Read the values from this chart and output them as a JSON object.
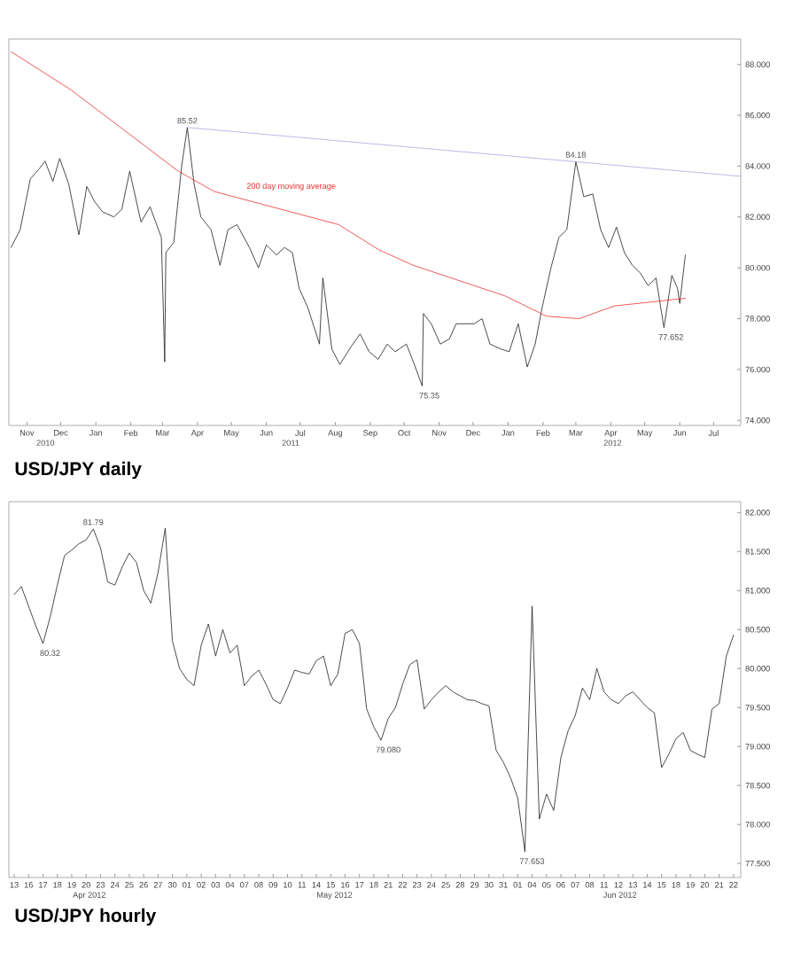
{
  "chart_data": [
    {
      "type": "line",
      "title": "USD/JPY daily",
      "xlim": [
        "2010-10-30",
        "2012-08-08"
      ],
      "xticks": [
        {
          "value": "2010-11-15",
          "label": "Nov"
        },
        {
          "value": "2010-12-15",
          "label": "Dec"
        },
        {
          "value": "2011-01-15",
          "label": "Jan"
        },
        {
          "value": "2011-02-15",
          "label": "Feb"
        },
        {
          "value": "2011-03-15",
          "label": "Mar"
        },
        {
          "value": "2011-04-15",
          "label": "Apr"
        },
        {
          "value": "2011-05-15",
          "label": "May"
        },
        {
          "value": "2011-06-15",
          "label": "Jun"
        },
        {
          "value": "2011-07-15",
          "label": "Jul"
        },
        {
          "value": "2011-08-15",
          "label": "Aug"
        },
        {
          "value": "2011-09-15",
          "label": "Sep"
        },
        {
          "value": "2011-10-15",
          "label": "Oct"
        },
        {
          "value": "2011-11-15",
          "label": "Nov"
        },
        {
          "value": "2011-12-15",
          "label": "Dec"
        },
        {
          "value": "2012-01-15",
          "label": "Jan"
        },
        {
          "value": "2012-02-15",
          "label": "Feb"
        },
        {
          "value": "2012-03-15",
          "label": "Mar"
        },
        {
          "value": "2012-04-15",
          "label": "Apr"
        },
        {
          "value": "2012-05-15",
          "label": "May"
        },
        {
          "value": "2012-06-15",
          "label": "Jun"
        },
        {
          "value": "2012-07-15",
          "label": "Jul"
        }
      ],
      "ylim": [
        73.8,
        89.0
      ],
      "yticks": [
        {
          "value": 74,
          "label": "74.000"
        },
        {
          "value": 76,
          "label": "76.000"
        },
        {
          "value": 78,
          "label": "78.000"
        },
        {
          "value": 80,
          "label": "80.000"
        },
        {
          "value": 82,
          "label": "82.000"
        },
        {
          "value": 84,
          "label": "84.000"
        },
        {
          "value": 86,
          "label": "86.000"
        },
        {
          "value": 88,
          "label": "88.000"
        }
      ],
      "series": [
        {
          "color": "#1e1e1e",
          "x": [
            "2010-11-01",
            "2010-11-09",
            "2010-11-18",
            "2010-11-26",
            "2010-12-01",
            "2010-12-08",
            "2010-12-14",
            "2010-12-22",
            "2010-12-31",
            "2011-01-07",
            "2011-01-14",
            "2011-01-21",
            "2011-01-31",
            "2011-02-07",
            "2011-02-14",
            "2011-02-24",
            "2011-03-04",
            "2011-03-14",
            "2011-03-17",
            "2011-03-18",
            "2011-03-25",
            "2011-04-01",
            "2011-04-06",
            "2011-04-12",
            "2011-04-18",
            "2011-04-27",
            "2011-05-05",
            "2011-05-12",
            "2011-05-20",
            "2011-05-31",
            "2011-06-08",
            "2011-06-15",
            "2011-06-24",
            "2011-07-01",
            "2011-07-08",
            "2011-07-14",
            "2011-07-22",
            "2011-08-01",
            "2011-08-04",
            "2011-08-12",
            "2011-08-19",
            "2011-08-29",
            "2011-09-06",
            "2011-09-14",
            "2011-09-22",
            "2011-09-30",
            "2011-10-07",
            "2011-10-17",
            "2011-10-24",
            "2011-10-31",
            "2011-11-01",
            "2011-11-08",
            "2011-11-16",
            "2011-11-24",
            "2011-11-30",
            "2011-12-08",
            "2011-12-16",
            "2011-12-23",
            "2011-12-30",
            "2012-01-09",
            "2012-01-16",
            "2012-01-24",
            "2012-02-01",
            "2012-02-08",
            "2012-02-14",
            "2012-02-22",
            "2012-02-29",
            "2012-03-07",
            "2012-03-15",
            "2012-03-22",
            "2012-03-30",
            "2012-04-06",
            "2012-04-13",
            "2012-04-20",
            "2012-04-27",
            "2012-05-04",
            "2012-05-11",
            "2012-05-18",
            "2012-05-25",
            "2012-06-01",
            "2012-06-04",
            "2012-06-08",
            "2012-06-13",
            "2012-06-15",
            "2012-06-20"
          ],
          "values": [
            80.8,
            81.5,
            83.5,
            83.9,
            84.2,
            83.4,
            84.3,
            83.3,
            81.3,
            83.2,
            82.6,
            82.2,
            82.0,
            82.3,
            83.8,
            81.8,
            82.4,
            81.2,
            76.3,
            80.6,
            81.0,
            84.0,
            85.52,
            83.3,
            82.0,
            81.5,
            80.1,
            81.5,
            81.7,
            80.8,
            80.0,
            80.9,
            80.5,
            80.8,
            80.6,
            79.2,
            78.4,
            77.0,
            79.6,
            76.8,
            76.2,
            76.9,
            77.4,
            76.7,
            76.4,
            77.0,
            76.7,
            77.0,
            76.2,
            75.35,
            78.2,
            77.8,
            77.0,
            77.2,
            77.8,
            77.8,
            77.8,
            78.0,
            77.0,
            76.8,
            76.7,
            77.8,
            76.1,
            77.0,
            78.4,
            80.0,
            81.2,
            81.5,
            84.18,
            82.8,
            82.9,
            81.5,
            80.8,
            81.6,
            80.6,
            80.1,
            79.8,
            79.3,
            79.6,
            77.65,
            78.5,
            79.7,
            79.2,
            78.6,
            80.5
          ]
        },
        {
          "name": "200 day moving average",
          "color": "#ee3030",
          "x": [
            "2010-11-01",
            "2010-12-24",
            "2011-03-29",
            "2011-04-30",
            "2011-08-18",
            "2011-09-23",
            "2011-10-23",
            "2012-01-12",
            "2012-02-18",
            "2012-03-18",
            "2012-04-18",
            "2012-06-20"
          ],
          "values": [
            88.5,
            87.0,
            83.8,
            83.0,
            81.7,
            80.7,
            80.1,
            78.9,
            78.1,
            78.0,
            78.5,
            78.8
          ]
        },
        {
          "color": "#a8a8e0",
          "x": [
            "2011-04-06",
            "2012-08-08"
          ],
          "values": [
            85.52,
            83.6
          ]
        }
      ],
      "annotations": [
        {
          "text": "85.52",
          "x": "2011-04-06",
          "y": 85.52
        },
        {
          "text": "84.18",
          "x": "2012-03-15",
          "y": 84.18
        },
        {
          "text": "75.35",
          "x": "2011-10-31",
          "y": 75.35
        },
        {
          "text": "77.652",
          "x": "2012-06-01",
          "y": 77.65
        },
        "2010",
        "2011",
        "2012"
      ]
    },
    {
      "type": "line",
      "title": "USD/JPY hourly",
      "categories": [
        "13",
        null,
        "16",
        null,
        "17",
        null,
        "18",
        null,
        "19",
        null,
        "20",
        null,
        "23",
        null,
        "24",
        null,
        "25",
        null,
        "26",
        null,
        "27",
        null,
        "30",
        null,
        "01",
        null,
        "02",
        null,
        "03",
        null,
        "04",
        null,
        "07",
        null,
        "08",
        null,
        "09",
        null,
        "10",
        null,
        "11",
        null,
        "14",
        null,
        "15",
        null,
        "16",
        null,
        "17",
        null,
        "18",
        null,
        "21",
        null,
        "22",
        null,
        "23",
        null,
        "24",
        null,
        "25",
        null,
        "28",
        null,
        "29",
        null,
        "30",
        null,
        "31",
        null,
        "01",
        null,
        "04",
        null,
        "05",
        null,
        "06",
        null,
        "07",
        null,
        "08",
        null,
        "11",
        null,
        "12",
        null,
        "13",
        null,
        "14",
        null,
        "15",
        null,
        "18",
        null,
        "19",
        null,
        "20",
        null,
        "21",
        null,
        "22",
        null
      ],
      "ylim": [
        77.32,
        82.14
      ],
      "yticks": [
        {
          "value": 77.5,
          "label": "77.500"
        },
        {
          "value": 78,
          "label": "78.000"
        },
        {
          "value": 78.5,
          "label": "78.500"
        },
        {
          "value": 79,
          "label": "79.000"
        },
        {
          "value": 79.5,
          "label": "79.500"
        },
        {
          "value": 80,
          "label": "80.000"
        },
        {
          "value": 80.5,
          "label": "80.500"
        },
        {
          "value": 81,
          "label": "81.000"
        },
        {
          "value": 81.5,
          "label": "81.500"
        },
        {
          "value": 82,
          "label": "82.000"
        }
      ],
      "series": [
        {
          "color": "#1e1e1e",
          "values": [
            80.95,
            81.05,
            80.8,
            80.55,
            80.32,
            80.66,
            81.07,
            81.45,
            81.52,
            81.6,
            81.65,
            81.79,
            81.55,
            81.11,
            81.07,
            81.3,
            81.48,
            81.36,
            81.0,
            80.84,
            81.23,
            81.8,
            80.35,
            80.0,
            79.86,
            79.78,
            80.3,
            80.57,
            80.16,
            80.5,
            80.2,
            80.3,
            79.78,
            79.9,
            79.98,
            79.8,
            79.6,
            79.55,
            79.75,
            79.98,
            79.95,
            79.93,
            80.1,
            80.16,
            79.78,
            79.93,
            80.45,
            80.5,
            80.32,
            79.48,
            79.25,
            79.08,
            79.36,
            79.5,
            79.8,
            80.05,
            80.11,
            79.48,
            79.6,
            79.7,
            79.78,
            79.7,
            79.65,
            79.6,
            79.59,
            79.55,
            79.52,
            78.95,
            78.8,
            78.6,
            78.34,
            77.65,
            80.8,
            78.07,
            78.39,
            78.18,
            78.86,
            79.2,
            79.4,
            79.75,
            79.6,
            80.0,
            79.7,
            79.6,
            79.55,
            79.65,
            79.7,
            79.6,
            79.5,
            79.43,
            78.73,
            78.9,
            79.1,
            79.18,
            78.95,
            78.9,
            78.86,
            79.48,
            79.55,
            80.16,
            80.43,
            null
          ]
        }
      ],
      "annotations": [
        {
          "text": "81.79",
          "y": 81.79
        },
        {
          "text": "80.32",
          "y": 80.32
        },
        {
          "text": "79.080",
          "y": 79.08
        },
        {
          "text": "77.653",
          "y": 77.65
        },
        "Apr 2012",
        "May 2012",
        "Jun 2012"
      ]
    }
  ]
}
